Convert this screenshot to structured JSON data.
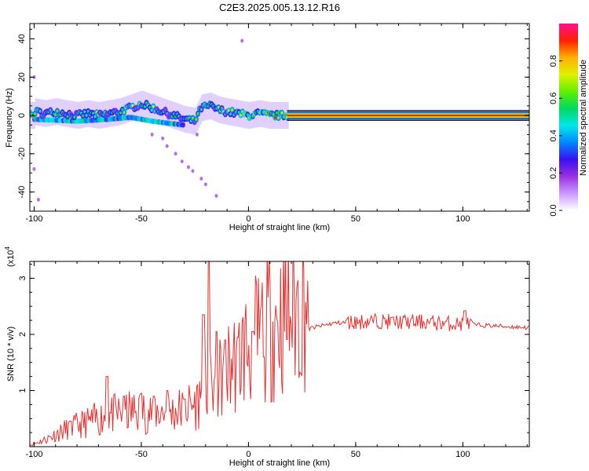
{
  "title": "C2E3.2025.005.13.12.R16",
  "chart_data": [
    {
      "type": "heatmap",
      "xlabel": "Height of straight line (km)",
      "ylabel": "Frequency (Hz)",
      "xlim": [
        -102,
        131
      ],
      "ylim": [
        -50,
        48
      ],
      "xticks": [
        -100,
        -50,
        0,
        50,
        100
      ],
      "yticks": [
        -40,
        -20,
        0,
        20,
        40
      ],
      "colorbar": {
        "label": "Normalized spectral amplitude",
        "range": [
          0,
          1
        ],
        "ticks": [
          0.0,
          0.2,
          0.4,
          0.6,
          0.8
        ],
        "tick_labels": [
          "0.0",
          "0.2",
          "0.4",
          "0.6",
          "0.8"
        ],
        "colormap": [
          "#ffffff",
          "#cc99ff",
          "#9a30e0",
          "#3a10f0",
          "#0088ff",
          "#00e8e8",
          "#00d860",
          "#60f000",
          "#e0f000",
          "#ffb000",
          "#ff2000",
          "#ff1090"
        ]
      },
      "ridge": [
        {
          "x": -100,
          "f": 2,
          "a": 0.55
        },
        {
          "x": -95,
          "f": 1,
          "a": 0.6
        },
        {
          "x": -90,
          "f": 2,
          "a": 0.55
        },
        {
          "x": -85,
          "f": 1,
          "a": 0.5
        },
        {
          "x": -80,
          "f": 0,
          "a": 0.5
        },
        {
          "x": -75,
          "f": 1,
          "a": 0.55
        },
        {
          "x": -70,
          "f": 0,
          "a": 0.6
        },
        {
          "x": -65,
          "f": 1,
          "a": 0.55
        },
        {
          "x": -60,
          "f": 2,
          "a": 0.6
        },
        {
          "x": -55,
          "f": 4,
          "a": 0.65
        },
        {
          "x": -50,
          "f": 6,
          "a": 0.6
        },
        {
          "x": -45,
          "f": 4,
          "a": 0.6
        },
        {
          "x": -40,
          "f": 2,
          "a": 0.55
        },
        {
          "x": -35,
          "f": 0,
          "a": 0.5
        },
        {
          "x": -30,
          "f": -2,
          "a": 0.5
        },
        {
          "x": -25,
          "f": -3,
          "a": 0.55
        },
        {
          "x": -22,
          "f": 4,
          "a": 0.6
        },
        {
          "x": -18,
          "f": 5,
          "a": 0.65
        },
        {
          "x": -14,
          "f": 3,
          "a": 0.6
        },
        {
          "x": -10,
          "f": 2,
          "a": 0.65
        },
        {
          "x": -5,
          "f": 1,
          "a": 0.7
        },
        {
          "x": 0,
          "f": 0,
          "a": 0.8
        },
        {
          "x": 5,
          "f": 1,
          "a": 0.8
        },
        {
          "x": 10,
          "f": 0,
          "a": 0.85
        },
        {
          "x": 15,
          "f": 0,
          "a": 0.9
        },
        {
          "x": 20,
          "f": 0,
          "a": 0.95
        },
        {
          "x": 50,
          "f": 0,
          "a": 0.95
        },
        {
          "x": 100,
          "f": 0,
          "a": 0.95
        },
        {
          "x": 131,
          "f": 0,
          "a": 0.95
        }
      ],
      "secondary_band": [
        {
          "x": -100,
          "f": -2
        },
        {
          "x": -80,
          "f": -3
        },
        {
          "x": -65,
          "f": -2
        },
        {
          "x": -55,
          "f": -1
        },
        {
          "x": -45,
          "f": -3
        },
        {
          "x": -38,
          "f": -4
        },
        {
          "x": -30,
          "f": -5
        }
      ],
      "scatter_points": [
        {
          "x": -45,
          "f": -10
        },
        {
          "x": -40,
          "f": -12
        },
        {
          "x": -38,
          "f": -16
        },
        {
          "x": -34,
          "f": -20
        },
        {
          "x": -31,
          "f": -24
        },
        {
          "x": -28,
          "f": -27
        },
        {
          "x": -26,
          "f": -29
        },
        {
          "x": -22,
          "f": -33
        },
        {
          "x": -20,
          "f": -36
        },
        {
          "x": -15,
          "f": -42
        },
        {
          "x": -24,
          "f": -10
        },
        {
          "x": -100,
          "f": 20
        },
        {
          "x": -100,
          "f": -28
        },
        {
          "x": -98,
          "f": -44
        },
        {
          "x": -3,
          "f": 39
        }
      ]
    },
    {
      "type": "line",
      "xlabel": "Height of straight line (km)",
      "ylabel": "SNR (10 * v/v)",
      "scale_label": "(x10",
      "scale_exp": "4",
      "xlim": [
        -102,
        131
      ],
      "ylim": [
        0,
        3.3
      ],
      "xticks": [
        -100,
        -50,
        0,
        50,
        100
      ],
      "yticks": [
        1,
        2,
        3
      ],
      "color": "#e83030",
      "envelope": [
        {
          "x": -102,
          "y": 0.02
        },
        {
          "x": -95,
          "y": 0.1
        },
        {
          "x": -85,
          "y": 0.25
        },
        {
          "x": -75,
          "y": 0.35
        },
        {
          "x": -65,
          "y": 0.45
        },
        {
          "x": -55,
          "y": 0.5
        },
        {
          "x": -45,
          "y": 0.5
        },
        {
          "x": -35,
          "y": 0.5
        },
        {
          "x": -25,
          "y": 0.6
        },
        {
          "x": -20,
          "y": 0.8
        },
        {
          "x": -15,
          "y": 0.9
        },
        {
          "x": -10,
          "y": 1.1
        },
        {
          "x": -5,
          "y": 1.3
        },
        {
          "x": 0,
          "y": 1.45
        },
        {
          "x": 5,
          "y": 1.6
        },
        {
          "x": 10,
          "y": 1.75
        },
        {
          "x": 15,
          "y": 1.85
        },
        {
          "x": 20,
          "y": 1.95
        },
        {
          "x": 25,
          "y": 2.05
        },
        {
          "x": 30,
          "y": 2.12
        },
        {
          "x": 40,
          "y": 2.2
        },
        {
          "x": 50,
          "y": 2.22
        },
        {
          "x": 60,
          "y": 2.24
        },
        {
          "x": 70,
          "y": 2.22
        },
        {
          "x": 80,
          "y": 2.22
        },
        {
          "x": 90,
          "y": 2.2
        },
        {
          "x": 100,
          "y": 2.18
        },
        {
          "x": 110,
          "y": 2.16
        },
        {
          "x": 120,
          "y": 2.14
        },
        {
          "x": 131,
          "y": 2.12
        }
      ],
      "peaks": [
        {
          "x": -83,
          "y": 0.45
        },
        {
          "x": -66,
          "y": 1.25
        },
        {
          "x": -58,
          "y": 0.9
        },
        {
          "x": -50,
          "y": 0.95
        },
        {
          "x": -44,
          "y": 0.9
        },
        {
          "x": -38,
          "y": 1.0
        },
        {
          "x": -30,
          "y": 0.85
        },
        {
          "x": -21,
          "y": 2.35
        },
        {
          "x": -18.5,
          "y": 3.3
        },
        {
          "x": -15,
          "y": 2.05
        },
        {
          "x": -11,
          "y": 1.9
        },
        {
          "x": -5,
          "y": 1.95
        },
        {
          "x": 2,
          "y": 2.05
        },
        {
          "x": 7,
          "y": 1.6
        },
        {
          "x": 101,
          "y": 2.42
        }
      ]
    }
  ]
}
